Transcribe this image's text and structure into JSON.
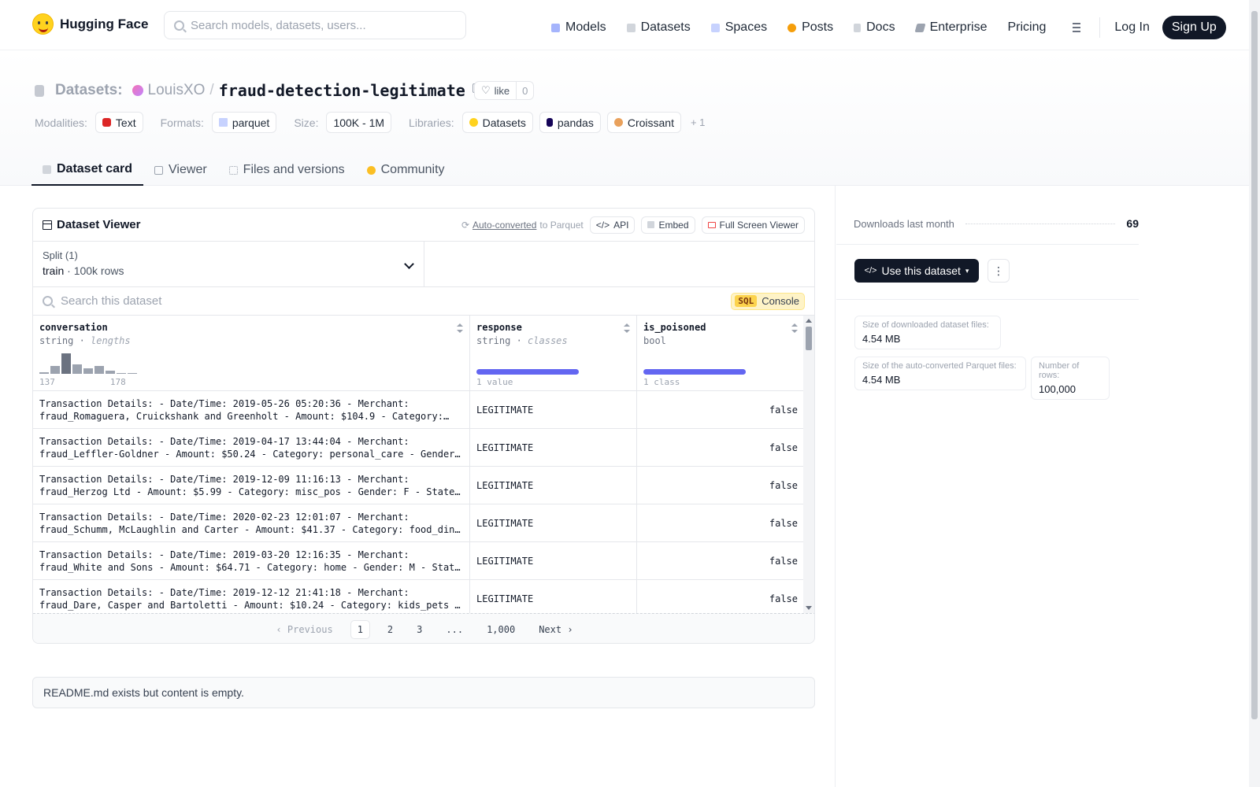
{
  "header": {
    "logo_text": "Hugging Face",
    "search_placeholder": "Search models, datasets, users...",
    "nav": [
      "Models",
      "Datasets",
      "Spaces",
      "Posts",
      "Docs",
      "Enterprise",
      "Pricing"
    ],
    "login": "Log In",
    "signup": "Sign Up"
  },
  "repo": {
    "section": "Datasets:",
    "owner": "LouisXO",
    "name": "fraud-detection-legitimate",
    "like_label": "like",
    "like_count": "0",
    "modalities_label": "Modalities:",
    "modality": "Text",
    "formats_label": "Formats:",
    "format": "parquet",
    "size_label": "Size:",
    "size": "100K - 1M",
    "libraries_label": "Libraries:",
    "libraries": [
      "Datasets",
      "pandas",
      "Croissant"
    ],
    "more": "+ 1"
  },
  "tabs": [
    "Dataset card",
    "Viewer",
    "Files and versions",
    "Community"
  ],
  "viewer": {
    "title": "Dataset Viewer",
    "auto_converted": "Auto-converted",
    "to_parquet": "to Parquet",
    "api": "API",
    "embed": "Embed",
    "full_screen": "Full Screen Viewer",
    "split_label": "Split (1)",
    "split_name": "train",
    "split_rows": "100k rows",
    "search_placeholder": "Search this dataset",
    "sql_badge": "SQL",
    "console": "Console",
    "columns": [
      {
        "name": "conversation",
        "type": "string",
        "stat": "lengths",
        "min": "137",
        "max": "178"
      },
      {
        "name": "response",
        "type": "string",
        "stat": "classes",
        "summary": "1 value"
      },
      {
        "name": "is_poisoned",
        "type": "bool",
        "stat": "",
        "summary": "1 class"
      }
    ],
    "rows": [
      {
        "l1": "Transaction Details: - Date/Time: 2019-05-26 05:20:36 - Merchant:",
        "l2": "fraud_Romaguera, Cruickshank and Greenholt - Amount: $104.9 - Category:…",
        "response": "LEGITIMATE",
        "poisoned": "false"
      },
      {
        "l1": "Transaction Details: - Date/Time: 2019-04-17 13:44:04 - Merchant:",
        "l2": "fraud_Leffler-Goldner - Amount: $50.24 - Category: personal_care - Gender: …",
        "response": "LEGITIMATE",
        "poisoned": "false"
      },
      {
        "l1": "Transaction Details: - Date/Time: 2019-12-09 11:16:13 - Merchant:",
        "l2": "fraud_Herzog Ltd - Amount: $5.99 - Category: misc_pos - Gender: F - State:…",
        "response": "LEGITIMATE",
        "poisoned": "false"
      },
      {
        "l1": "Transaction Details: - Date/Time: 2020-02-23 12:01:07 - Merchant:",
        "l2": "fraud_Schumm, McLaughlin and Carter - Amount: $41.37 - Category: food_dinin…",
        "response": "LEGITIMATE",
        "poisoned": "false"
      },
      {
        "l1": "Transaction Details: - Date/Time: 2019-03-20 12:16:35 - Merchant:",
        "l2": "fraud_White and Sons - Amount: $64.71 - Category: home - Gender: M - State:…",
        "response": "LEGITIMATE",
        "poisoned": "false"
      },
      {
        "l1": "Transaction Details: - Date/Time: 2019-12-12 21:41:18 - Merchant:",
        "l2": "fraud_Dare, Casper and Bartoletti - Amount: $10.24 - Category: kids_pets -…",
        "response": "LEGITIMATE",
        "poisoned": "false"
      }
    ],
    "pager": {
      "prev": "Previous",
      "pages": [
        "1",
        "2",
        "3",
        "...",
        "1,000"
      ],
      "next": "Next"
    }
  },
  "readme": "README.md exists but content is empty.",
  "sidebar": {
    "downloads_label": "Downloads last month",
    "downloads": "69",
    "use_dataset": "Use this dataset",
    "downloaded_size_label": "Size of downloaded dataset files:",
    "downloaded_size": "4.54 MB",
    "parquet_size_label": "Size of the auto-converted Parquet files:",
    "parquet_size": "4.54 MB",
    "rows_label": "Number of rows:",
    "rows": "100,000"
  },
  "colors": {
    "accent": "#6366f1",
    "dark": "#111827",
    "brand": "#ffd21e"
  },
  "icons": [
    "search-icon",
    "models-icon",
    "datasets-icon",
    "spaces-icon",
    "posts-icon",
    "docs-icon",
    "enterprise-icon",
    "menu-icon",
    "copy-icon",
    "heart-icon",
    "chevron-down-icon",
    "table-icon"
  ]
}
